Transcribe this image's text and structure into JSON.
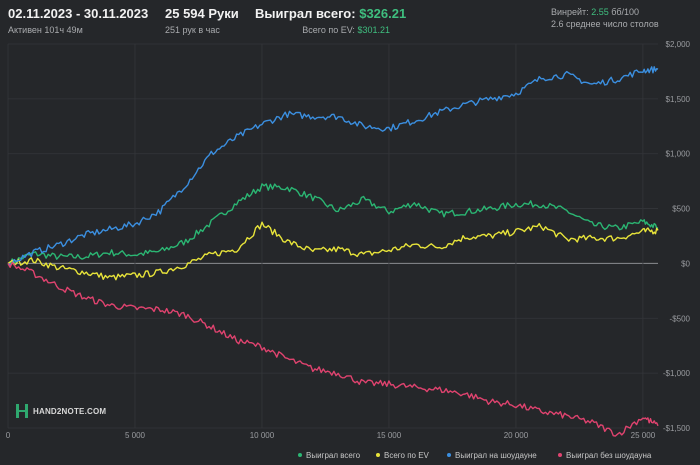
{
  "header": {
    "date_range": "02.11.2023 - 30.11.2023",
    "active": "Активен 101ч 49м",
    "hands": "25 594 Руки",
    "hands_per_hour": "251 рук в час",
    "won_label": "Выиграл всего:",
    "won_value": "$326.21",
    "ev_label": "Всего по EV:",
    "ev_value": "$301.21",
    "winrate_label": "Винрейт:",
    "winrate_value": "2.55",
    "winrate_unit": "бб/100",
    "avg_tables": "2.6 среднее число столов"
  },
  "logo": {
    "text": "HAND2NOTE.COM"
  },
  "colors": {
    "background": "#25272a",
    "grid": "#34363a",
    "zero_line": "#8a8c90",
    "won_total": "#2bb673",
    "ev_total": "#e8e43a",
    "showdown": "#3b8fe0",
    "non_showdown": "#e0436f"
  },
  "chart_data": {
    "type": "line",
    "xlim": [
      0,
      25594
    ],
    "ylim": [
      -1500,
      2000
    ],
    "x_ticks": [
      0,
      5000,
      10000,
      15000,
      20000,
      25000
    ],
    "x_tick_labels": [
      "0",
      "5 000",
      "10 000",
      "15 000",
      "20 000",
      "25 000"
    ],
    "y_ticks": [
      2000,
      1500,
      1000,
      500,
      0,
      -500,
      -1000,
      -1500
    ],
    "y_tick_labels": [
      "$2,000",
      "$1,500",
      "$1,000",
      "$500",
      "$0",
      "-$500",
      "-$1,000",
      "-$1,500"
    ],
    "grid": true,
    "legend_position": "bottom-right",
    "x": [
      0,
      1000,
      2000,
      3000,
      4000,
      5000,
      6000,
      7000,
      8000,
      9000,
      10000,
      11000,
      12000,
      13000,
      14000,
      15000,
      16000,
      17000,
      18000,
      19000,
      20000,
      21000,
      22000,
      23000,
      24000,
      25000,
      25594
    ],
    "series": [
      {
        "name": "Выиграл всего",
        "key": "won_total",
        "values": [
          0,
          90,
          60,
          60,
          100,
          80,
          110,
          200,
          370,
          550,
          700,
          690,
          600,
          480,
          580,
          470,
          550,
          450,
          470,
          500,
          540,
          540,
          480,
          350,
          320,
          380,
          326
        ]
      },
      {
        "name": "Всего по EV",
        "key": "ev_total",
        "values": [
          0,
          30,
          -40,
          -80,
          -130,
          -110,
          -80,
          -10,
          80,
          130,
          360,
          200,
          110,
          130,
          80,
          120,
          170,
          150,
          240,
          250,
          290,
          340,
          220,
          230,
          230,
          290,
          301
        ]
      },
      {
        "name": "Выиграл на шоудауне",
        "key": "showdown",
        "values": [
          0,
          100,
          170,
          260,
          310,
          360,
          480,
          720,
          1000,
          1150,
          1270,
          1360,
          1340,
          1340,
          1250,
          1230,
          1300,
          1380,
          1450,
          1500,
          1550,
          1690,
          1720,
          1630,
          1680,
          1760,
          1770
        ]
      },
      {
        "name": "Выиграл без шоудауна",
        "key": "non_showdown",
        "values": [
          0,
          -90,
          -210,
          -310,
          -380,
          -410,
          -420,
          -470,
          -580,
          -700,
          -760,
          -870,
          -960,
          -1000,
          -1090,
          -1100,
          -1130,
          -1150,
          -1190,
          -1260,
          -1290,
          -1350,
          -1390,
          -1450,
          -1560,
          -1400,
          -1480
        ]
      }
    ]
  }
}
